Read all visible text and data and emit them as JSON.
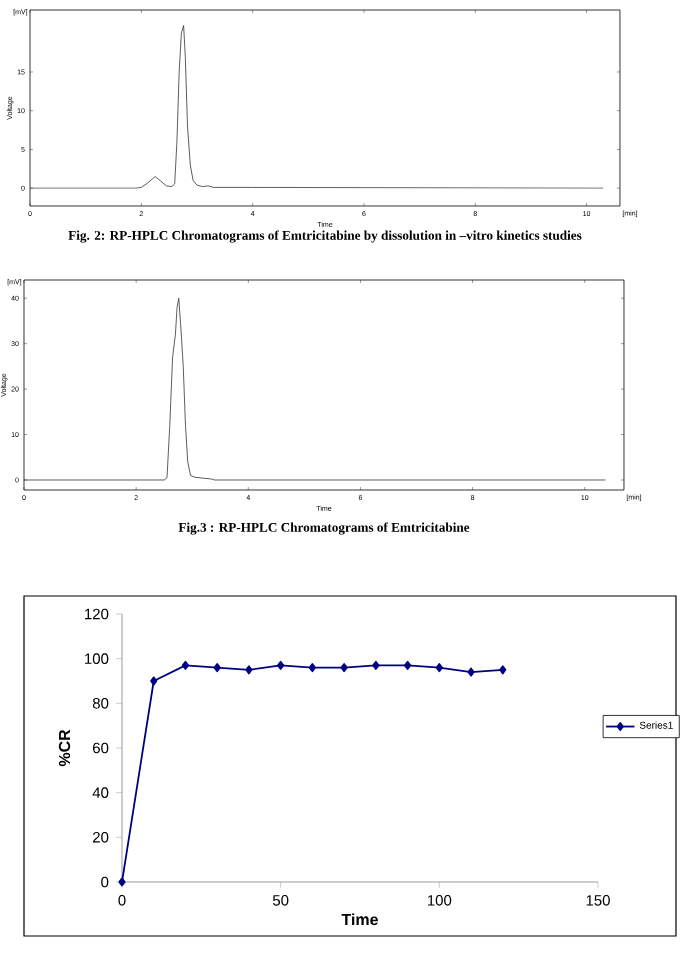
{
  "chart_data": [
    {
      "type": "line",
      "title": "Fig. 2: RP-HPLC Chromatograms of  Emtricitabine by dissolution in –vitro kinetics studies",
      "xlabel": "Time",
      "ylabel": "Voltage",
      "annotations": [
        "[mV]",
        "[min]"
      ],
      "color": "#333333",
      "x": [
        0,
        1.9,
        2.0,
        2.1,
        2.25,
        2.35,
        2.45,
        2.55,
        2.6,
        2.64,
        2.68,
        2.72,
        2.76,
        2.79,
        2.83,
        2.88,
        2.93,
        3.0,
        3.1,
        3.2,
        3.3,
        4,
        10.3
      ],
      "values": [
        0,
        0,
        0.1,
        0.6,
        1.5,
        0.9,
        0.3,
        0.2,
        0.6,
        6,
        15,
        20,
        21,
        17,
        8,
        3,
        1,
        0.4,
        0.2,
        0.3,
        0.1,
        0.1,
        0
      ],
      "xlim": [
        0,
        10.6
      ],
      "ylim": [
        -2.3,
        23
      ],
      "xticks": [
        0,
        2,
        4,
        6,
        8,
        10
      ],
      "yticks": [
        0,
        5,
        10,
        15
      ]
    },
    {
      "type": "line",
      "title": "Fig.3 : RP-HPLC Chromatograms of  Emtricitabine",
      "xlabel": "Time",
      "ylabel": "Voltage",
      "annotations": [
        "[mV]",
        "[min]"
      ],
      "color": "#333333",
      "x": [
        0,
        2.5,
        2.55,
        2.6,
        2.65,
        2.7,
        2.73,
        2.76,
        2.8,
        2.84,
        2.88,
        2.92,
        2.97,
        3.05,
        3.2,
        3.35,
        3.4,
        10.37
      ],
      "values": [
        0,
        0,
        0.5,
        12,
        27,
        32,
        38,
        40,
        33,
        25,
        12,
        4,
        1,
        0.6,
        0.4,
        0.2,
        0,
        0
      ],
      "xlim": [
        0,
        10.7
      ],
      "ylim": [
        -2.2,
        44
      ],
      "xticks": [
        0,
        2,
        4,
        6,
        8,
        10
      ],
      "yticks": [
        0,
        10,
        20,
        30,
        40
      ]
    },
    {
      "type": "line",
      "xlabel": "Time",
      "ylabel": "%CR",
      "marker": "diamond",
      "legend": "right",
      "x": [
        0,
        10,
        20,
        30,
        40,
        50,
        60,
        70,
        80,
        90,
        100,
        110,
        120
      ],
      "series": [
        {
          "name": "Series1",
          "color": "#000080",
          "values": [
            0,
            90,
            97,
            96,
            95,
            97,
            96,
            96,
            97,
            97,
            96,
            94,
            95
          ]
        }
      ],
      "xlim": [
        0,
        150
      ],
      "ylim": [
        0,
        120
      ],
      "xticks": [
        0,
        50,
        100,
        150
      ],
      "yticks": [
        0,
        20,
        40,
        60,
        80,
        100,
        120
      ]
    }
  ]
}
